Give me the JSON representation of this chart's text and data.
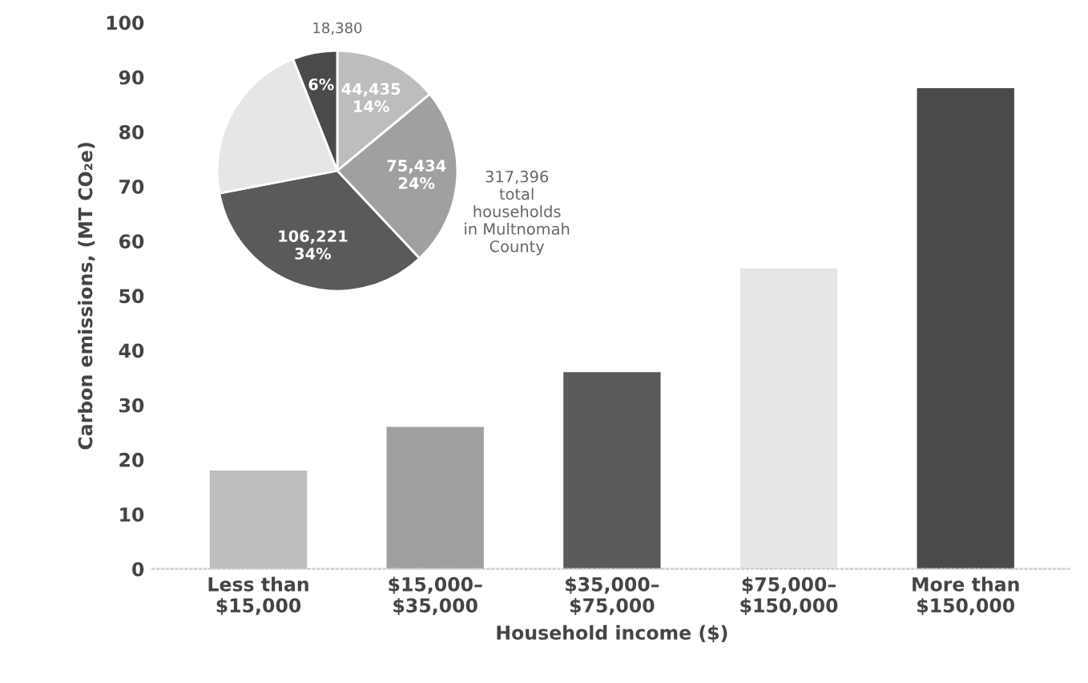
{
  "chart_data": [
    {
      "type": "bar",
      "xlabel": "Household income ($)",
      "ylabel": "Carbon emissions, (MT CO₂e)",
      "categories": [
        "Less than\n$15,000",
        "$15,000–\n$35,000",
        "$35,000–\n$75,000",
        "$75,000–\n$150,000",
        "More than\n$150,000"
      ],
      "values": [
        18,
        26,
        36,
        55,
        88
      ],
      "colors": [
        "#bdbdbd",
        "#a0a0a0",
        "#5a5a5a",
        "#e6e6e6",
        "#4a4a4a"
      ],
      "ylim": [
        0,
        100
      ],
      "yticks": [
        0,
        10,
        20,
        30,
        40,
        50,
        60,
        70,
        80,
        90,
        100
      ],
      "grid": false,
      "legend": false
    },
    {
      "type": "pie",
      "categories": [
        null,
        null,
        null,
        null,
        null
      ],
      "values": [
        14,
        24,
        34,
        22,
        6
      ],
      "colors": [
        "#bdbdbd",
        "#a0a0a0",
        "#5a5a5a",
        "#e6e6e6",
        "#4a4a4a"
      ],
      "value_labels": [
        "44,435\n14%",
        "75,434\n24%",
        "106,221\n34%",
        null,
        "18,380\n6%"
      ],
      "annotations": [
        "317,396\ntotal\nhouseholds\nin Multnomah\nCounty"
      ]
    }
  ]
}
